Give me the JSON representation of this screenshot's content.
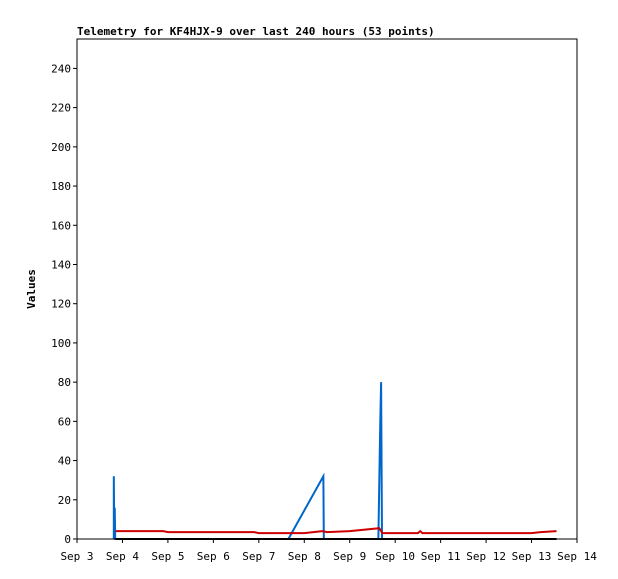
{
  "chart_data": {
    "type": "line",
    "title": "Telemetry for KF4HJX-9 over last 240 hours (53 points)",
    "xlabel": "",
    "ylabel": "Values",
    "xlim": [
      3.0,
      14.0
    ],
    "ylim": [
      0,
      255
    ],
    "x_ticks": [
      {
        "value": 3,
        "label": "Sep 3"
      },
      {
        "value": 4,
        "label": "Sep 4"
      },
      {
        "value": 5,
        "label": "Sep 5"
      },
      {
        "value": 6,
        "label": "Sep 6"
      },
      {
        "value": 7,
        "label": "Sep 7"
      },
      {
        "value": 8,
        "label": "Sep 8"
      },
      {
        "value": 9,
        "label": "Sep 9"
      },
      {
        "value": 10,
        "label": "Sep 10"
      },
      {
        "value": 11,
        "label": "Sep 11"
      },
      {
        "value": 12,
        "label": "Sep 12"
      },
      {
        "value": 13,
        "label": "Sep 13"
      },
      {
        "value": 14,
        "label": "Sep 14"
      }
    ],
    "y_ticks": [
      0,
      20,
      40,
      60,
      80,
      100,
      120,
      140,
      160,
      180,
      200,
      220,
      240
    ],
    "series": [
      {
        "color": "#0066cc",
        "points": [
          [
            3.81,
            0
          ],
          [
            3.81,
            32
          ],
          [
            3.82,
            0
          ],
          [
            3.83,
            16
          ],
          [
            3.84,
            0
          ],
          [
            7.65,
            0
          ],
          [
            8.42,
            32
          ],
          [
            8.43,
            0
          ],
          [
            9.63,
            0
          ],
          [
            9.67,
            57
          ],
          [
            9.69,
            80
          ],
          [
            9.71,
            0
          ]
        ]
      },
      {
        "color": "#cc0000",
        "points": [
          [
            3.85,
            4
          ],
          [
            4.9,
            4
          ],
          [
            5.0,
            3.5
          ],
          [
            6.9,
            3.5
          ],
          [
            7.0,
            3
          ],
          [
            8.0,
            3
          ],
          [
            8.4,
            4
          ],
          [
            8.5,
            3.5
          ],
          [
            9.0,
            4
          ],
          [
            9.65,
            5.5
          ],
          [
            9.72,
            3
          ],
          [
            10.5,
            3
          ],
          [
            10.55,
            4
          ],
          [
            10.6,
            3
          ],
          [
            13.0,
            3
          ],
          [
            13.2,
            3.5
          ],
          [
            13.55,
            4
          ]
        ]
      },
      {
        "color": "#000000",
        "points": [
          [
            3.85,
            0
          ],
          [
            13.55,
            0
          ]
        ]
      }
    ]
  }
}
